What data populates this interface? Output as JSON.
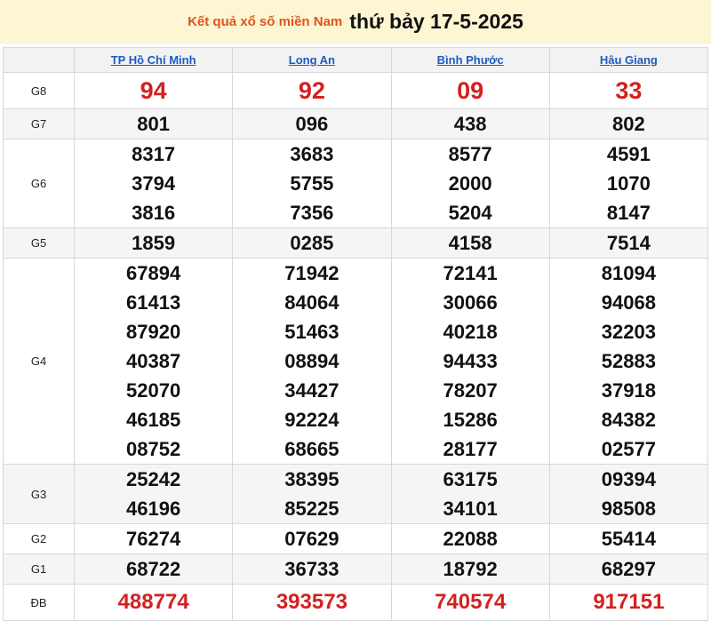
{
  "header": {
    "title": "Kết quả xổ số miền Nam",
    "date": "thứ bảy 17-5-2025"
  },
  "table": {
    "columns": [
      "TP Hồ Chí Minh",
      "Long An",
      "Bình Phước",
      "Hậu Giang"
    ],
    "rows": [
      {
        "label": "G8",
        "cells": [
          [
            "94"
          ],
          [
            "92"
          ],
          [
            "09"
          ],
          [
            "33"
          ]
        ]
      },
      {
        "label": "G7",
        "cells": [
          [
            "801"
          ],
          [
            "096"
          ],
          [
            "438"
          ],
          [
            "802"
          ]
        ]
      },
      {
        "label": "G6",
        "cells": [
          [
            "8317",
            "3794",
            "3816"
          ],
          [
            "3683",
            "5755",
            "7356"
          ],
          [
            "8577",
            "2000",
            "5204"
          ],
          [
            "4591",
            "1070",
            "8147"
          ]
        ]
      },
      {
        "label": "G5",
        "cells": [
          [
            "1859"
          ],
          [
            "0285"
          ],
          [
            "4158"
          ],
          [
            "7514"
          ]
        ]
      },
      {
        "label": "G4",
        "cells": [
          [
            "67894",
            "61413",
            "87920",
            "40387",
            "52070",
            "46185",
            "08752"
          ],
          [
            "71942",
            "84064",
            "51463",
            "08894",
            "34427",
            "92224",
            "68665"
          ],
          [
            "72141",
            "30066",
            "40218",
            "94433",
            "78207",
            "15286",
            "28177"
          ],
          [
            "81094",
            "94068",
            "32203",
            "52883",
            "37918",
            "84382",
            "02577"
          ]
        ]
      },
      {
        "label": "G3",
        "cells": [
          [
            "25242",
            "46196"
          ],
          [
            "38395",
            "85225"
          ],
          [
            "63175",
            "34101"
          ],
          [
            "09394",
            "98508"
          ]
        ]
      },
      {
        "label": "G2",
        "cells": [
          [
            "76274"
          ],
          [
            "07629"
          ],
          [
            "22088"
          ],
          [
            "55414"
          ]
        ]
      },
      {
        "label": "G1",
        "cells": [
          [
            "68722"
          ],
          [
            "36733"
          ],
          [
            "18792"
          ],
          [
            "68297"
          ]
        ]
      },
      {
        "label": "ĐB",
        "cells": [
          [
            "488774"
          ],
          [
            "393573"
          ],
          [
            "740574"
          ],
          [
            "917151"
          ]
        ]
      }
    ]
  }
}
